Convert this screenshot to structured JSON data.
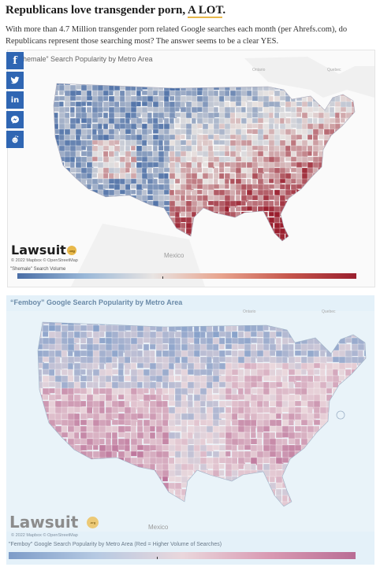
{
  "article": {
    "headline_text": "Republicans love transgender porn,",
    "headline_link": "A LOT",
    "headline_end": ".",
    "intro": "With more than 4.7 Million transgender porn related Google searches each month (per Ahrefs.com), do Republicans represent those searching most? The answer seems to be a clear YES."
  },
  "share": [
    {
      "name": "facebook",
      "glyph": "f"
    },
    {
      "name": "twitter",
      "glyph": "twitter-bird"
    },
    {
      "name": "linkedin",
      "glyph": "in"
    },
    {
      "name": "messenger",
      "glyph": "messenger-bolt"
    },
    {
      "name": "reddit",
      "glyph": "reddit-alien"
    }
  ],
  "map1": {
    "title": "“Shemale” Search Popularity by Metro Area",
    "logo": "Lawsuit",
    "logo_badge": ".org",
    "credit": "© 2022 Mapbox © OpenStreetMap",
    "mexico": "Mexico",
    "ontario": "Ontario",
    "quebec": "Quebec",
    "legend_title": "\"Shemale\" Search Volume",
    "colors": {
      "low": "#4a6ea6",
      "mid": "#e8e4e2",
      "high": "#9a1f2e"
    }
  },
  "map2": {
    "title": "“Femboy” Google Search Popularity by Metro Area",
    "logo": "Lawsuit",
    "logo_badge": ".org",
    "credit": "© 2022 Mapbox © OpenStreetMap",
    "mexico": "Mexico",
    "ontario": "Ontario",
    "quebec": "Quebec",
    "legend_title": "\"Femboy\" Google Search Popularity by Metro Area (Red  = Higher Volume of Searches)",
    "colors": {
      "low": "#7d9cc8",
      "mid": "#ead7dc",
      "high": "#b96d95",
      "background": "#e4f1f9"
    }
  }
}
